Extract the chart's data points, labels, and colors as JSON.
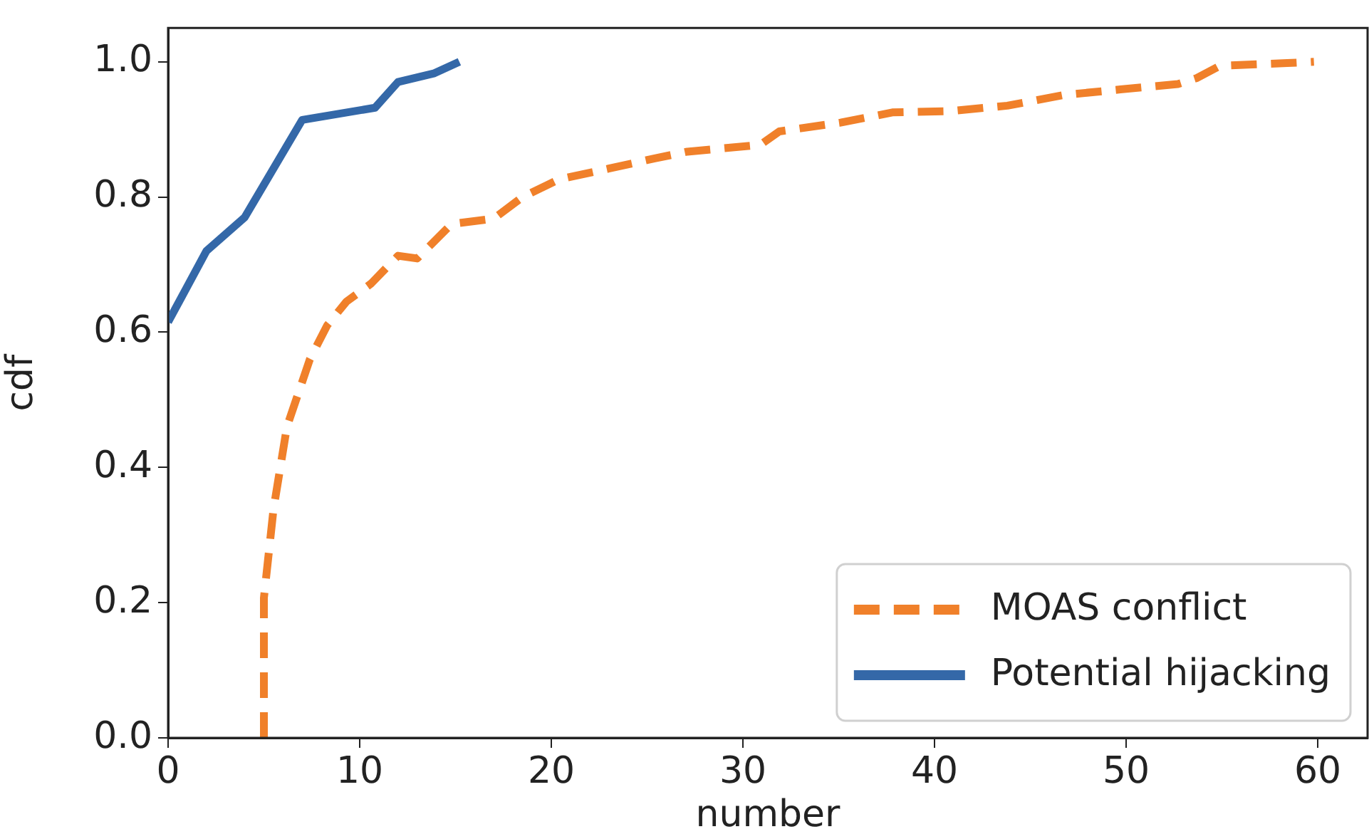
{
  "chart_data": {
    "type": "line",
    "xlabel": "number",
    "ylabel": "cdf",
    "xlim": [
      0,
      62.6
    ],
    "ylim": [
      0,
      1.05
    ],
    "xticks": [
      0,
      10,
      20,
      30,
      40,
      50,
      60
    ],
    "yticks": [
      {
        "value": 0,
        "label": "0.0"
      },
      {
        "value": 0.2,
        "label": "0.2"
      },
      {
        "value": 0.4,
        "label": "0.4"
      },
      {
        "value": 0.6,
        "label": "0.6"
      },
      {
        "value": 0.8,
        "label": "0.8"
      },
      {
        "value": 1,
        "label": "1.0"
      }
    ],
    "grid": false,
    "legend": "bottom right",
    "series": [
      {
        "name": "MOAS conflict",
        "color": "#f0802a",
        "line_style": "dashed",
        "x": [
          5,
          5,
          5.5,
          6.2,
          7.4,
          8.3,
          9.3,
          10.6,
          12,
          13,
          14.8,
          17,
          18.5,
          20.4,
          23,
          25.4,
          27.1,
          30.9,
          31.9,
          35.1,
          37.8,
          40.8,
          43.8,
          46.8,
          49.7,
          52.7,
          53.7,
          54.9,
          58.4,
          59.8
        ],
        "values": [
          0,
          0.207,
          0.338,
          0.46,
          0.56,
          0.61,
          0.645,
          0.672,
          0.713,
          0.709,
          0.76,
          0.768,
          0.8,
          0.826,
          0.842,
          0.857,
          0.867,
          0.877,
          0.897,
          0.91,
          0.925,
          0.927,
          0.935,
          0.951,
          0.959,
          0.967,
          0.976,
          0.994,
          0.998,
          1.0
        ]
      },
      {
        "name": "Potential hijacking",
        "color": "#3468a8",
        "line_style": "solid",
        "x": [
          0,
          2,
          4,
          7,
          10.8,
          12,
          13.9,
          15.2
        ],
        "values": [
          0.615,
          0.72,
          0.77,
          0.914,
          0.932,
          0.97,
          0.983,
          1.0
        ]
      }
    ]
  }
}
